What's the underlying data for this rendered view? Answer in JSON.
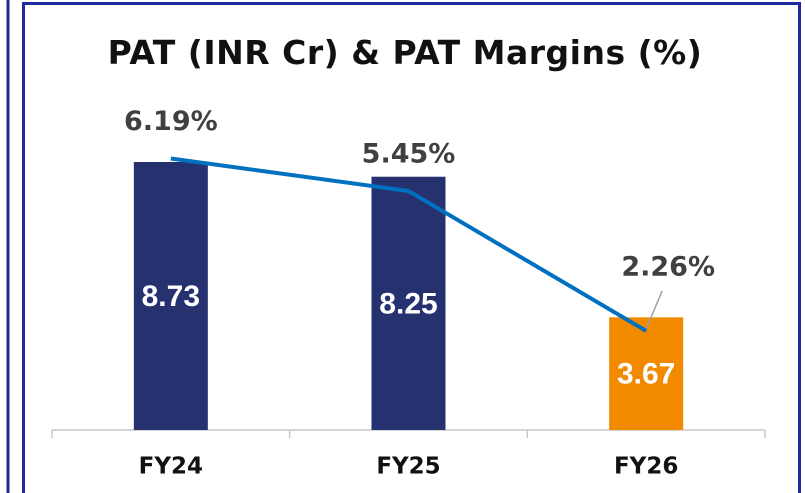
{
  "chart_data": {
    "type": "bar_line",
    "title": "PAT (INR Cr) & PAT Margins (%)",
    "categories": [
      "FY24",
      "FY25",
      "FY26"
    ],
    "series": [
      {
        "type": "bar",
        "values": [
          8.73,
          8.25,
          3.67
        ],
        "colors": [
          "#263270",
          "#263270",
          "#f28a00"
        ]
      },
      {
        "type": "line",
        "axis": "y2",
        "color": "#0070c0",
        "values": [
          6.19,
          5.45,
          2.26
        ],
        "value_labels": [
          "6.19%",
          "5.45%",
          "2.26%"
        ]
      }
    ],
    "ylim": [
      0,
      10
    ],
    "y2lim": [
      0,
      7
    ]
  }
}
